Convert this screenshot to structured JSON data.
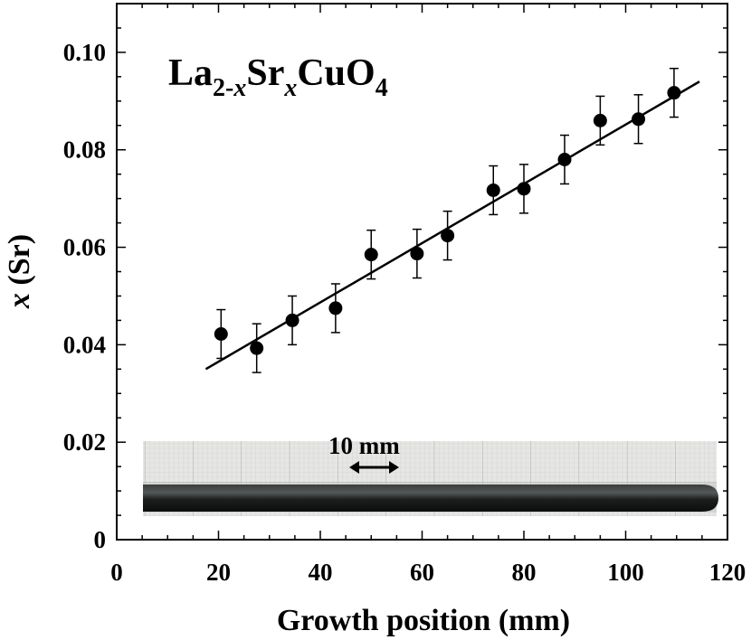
{
  "chart_data": {
    "type": "scatter",
    "title": "La2-xSrxCuO4",
    "title_parts": {
      "base1": "La",
      "sub1": "2-",
      "sub1_italic": "x",
      "base2": "Sr",
      "sub2_italic": "x",
      "base3": "CuO",
      "sub3": "4"
    },
    "xlabel": "Growth position (mm)",
    "ylabel_italic": "x",
    "ylabel_rest": " (Sr)",
    "xlim": [
      0,
      120
    ],
    "ylim": [
      0,
      0.11
    ],
    "x_ticks": [
      0,
      20,
      40,
      60,
      80,
      100,
      120
    ],
    "x_tick_labels": [
      "0",
      "20",
      "40",
      "60",
      "80",
      "100",
      "120"
    ],
    "y_ticks": [
      0,
      0.02,
      0.04,
      0.06,
      0.08,
      0.1
    ],
    "y_tick_labels": [
      "0",
      "0.02",
      "0.04",
      "0.06",
      "0.08",
      "0.10"
    ],
    "series": [
      {
        "name": "x (Sr)",
        "x": [
          20.5,
          27.5,
          34.5,
          43.0,
          50.0,
          59.0,
          65.0,
          74.0,
          80.0,
          88.0,
          95.0,
          102.5,
          109.5
        ],
        "y": [
          0.0422,
          0.0393,
          0.045,
          0.0475,
          0.0585,
          0.0587,
          0.0624,
          0.0717,
          0.072,
          0.078,
          0.086,
          0.0863,
          0.0917
        ],
        "error": [
          0.005,
          0.005,
          0.005,
          0.005,
          0.005,
          0.005,
          0.005,
          0.005,
          0.005,
          0.005,
          0.005,
          0.005,
          0.005
        ]
      }
    ],
    "fit_line": {
      "x": [
        17.5,
        114.5
      ],
      "y": [
        0.035,
        0.094
      ]
    },
    "inset_photo": {
      "label": "10 mm",
      "scale_bar_mm": 10,
      "description": "photo of grown crystal rod on graph paper"
    }
  }
}
